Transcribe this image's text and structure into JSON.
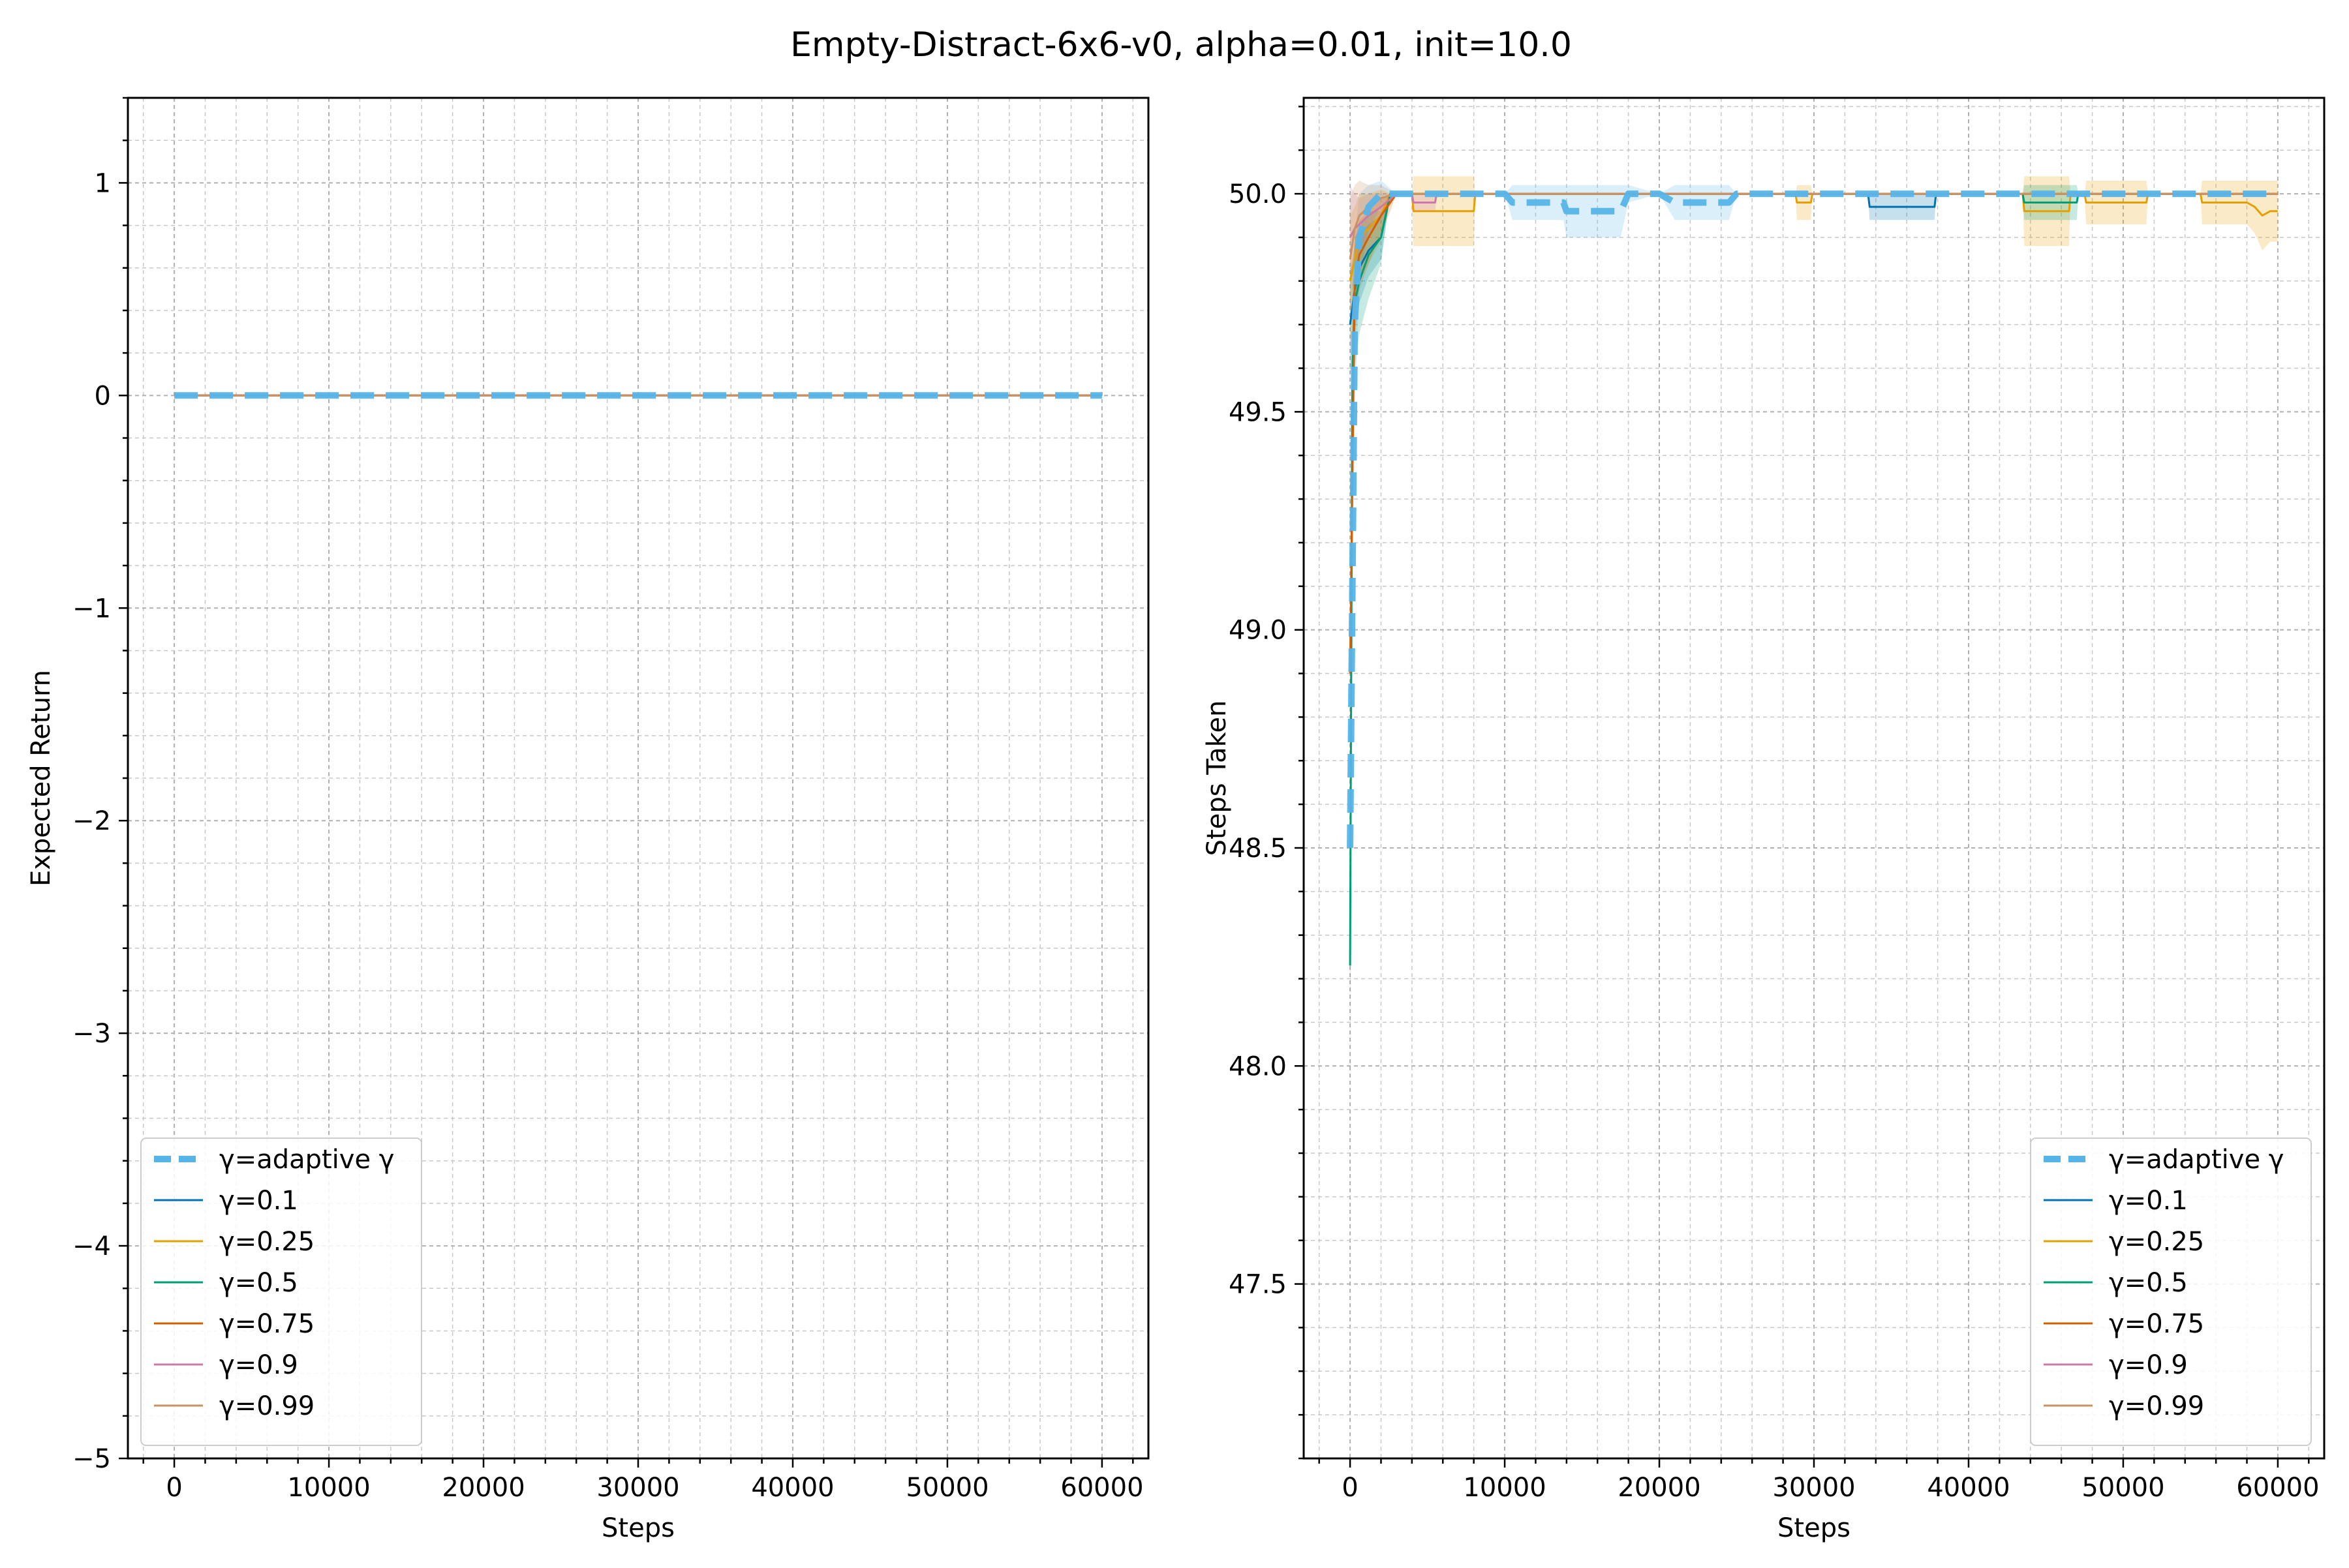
{
  "figure": {
    "title": "Empty-Distract-6x6-v0, alpha=0.01, init=10.0"
  },
  "chart_data": [
    {
      "type": "line",
      "xlabel": "Steps",
      "ylabel": "Expected Return",
      "xlim": [
        -3000,
        63000
      ],
      "ylim": [
        -5,
        1.4
      ],
      "xticks": [
        0,
        10000,
        20000,
        30000,
        40000,
        50000,
        60000
      ],
      "yticks": [
        -5,
        -4,
        -3,
        -2,
        -1,
        0,
        1
      ],
      "ytick_labels": [
        "−5",
        "−4",
        "−3",
        "−2",
        "−1",
        "0",
        "1"
      ],
      "grid": true,
      "legend_position": "lower-left",
      "series": [
        {
          "name": "γ=adaptive γ",
          "color": "#56b4e9",
          "style": "dashed",
          "x": [
            0,
            60000
          ],
          "y": [
            0,
            0
          ]
        },
        {
          "name": "γ=0.1",
          "color": "#0072b2",
          "style": "solid",
          "x": [
            0,
            60000
          ],
          "y": [
            0,
            0
          ]
        },
        {
          "name": "γ=0.25",
          "color": "#e69f00",
          "style": "solid",
          "x": [
            0,
            60000
          ],
          "y": [
            0,
            0
          ]
        },
        {
          "name": "γ=0.5",
          "color": "#009e73",
          "style": "solid",
          "x": [
            0,
            60000
          ],
          "y": [
            0,
            0
          ]
        },
        {
          "name": "γ=0.75",
          "color": "#d55e00",
          "style": "solid",
          "x": [
            0,
            60000
          ],
          "y": [
            0,
            0
          ]
        },
        {
          "name": "γ=0.9",
          "color": "#cc79a7",
          "style": "solid",
          "x": [
            0,
            60000
          ],
          "y": [
            0,
            0
          ]
        },
        {
          "name": "γ=0.99",
          "color": "#ca9161",
          "style": "solid",
          "x": [
            0,
            60000
          ],
          "y": [
            0,
            0
          ]
        }
      ]
    },
    {
      "type": "line",
      "xlabel": "Steps",
      "ylabel": "Steps Taken",
      "xlim": [
        -3000,
        63000
      ],
      "ylim": [
        47.1,
        50.22
      ],
      "xticks": [
        0,
        10000,
        20000,
        30000,
        40000,
        50000,
        60000
      ],
      "yticks": [
        47.5,
        48.0,
        48.5,
        49.0,
        49.5,
        50.0
      ],
      "ytick_labels": [
        "47.5",
        "48.0",
        "48.5",
        "49.0",
        "49.5",
        "50.0"
      ],
      "grid": true,
      "legend_position": "lower-right",
      "series": [
        {
          "name": "γ=adaptive γ",
          "color": "#56b4e9",
          "style": "dashed",
          "x": [
            0,
            300,
            600,
            1200,
            2000,
            3000,
            10000,
            10500,
            12000,
            13800,
            14000,
            17500,
            18000,
            20000,
            21000,
            23000,
            24500,
            25000,
            60000
          ],
          "y": [
            48.5,
            49.7,
            49.9,
            49.97,
            50.0,
            50.0,
            50.0,
            49.98,
            49.98,
            49.98,
            49.96,
            49.96,
            50.0,
            50.0,
            49.98,
            49.98,
            49.98,
            50.0,
            50.0
          ],
          "band": [
            0.25,
            0.2,
            0.1,
            0.05,
            0.03,
            0.0,
            0.0,
            0.04,
            0.04,
            0.04,
            0.06,
            0.06,
            0.02,
            0.0,
            0.04,
            0.04,
            0.04,
            0.0,
            0.0
          ]
        },
        {
          "name": "γ=0.1",
          "color": "#0072b2",
          "style": "solid",
          "x": [
            0,
            300,
            600,
            1200,
            2000,
            2600,
            3000,
            33500,
            33600,
            37800,
            37900,
            60000
          ],
          "y": [
            49.7,
            49.78,
            49.83,
            49.87,
            49.9,
            50.0,
            50.0,
            50.0,
            49.97,
            49.97,
            50.0,
            50.0
          ],
          "band": [
            0.12,
            0.1,
            0.08,
            0.06,
            0.05,
            0.0,
            0.0,
            0.0,
            0.03,
            0.03,
            0.0,
            0.0
          ]
        },
        {
          "name": "γ=0.25",
          "color": "#e69f00",
          "style": "solid",
          "x": [
            0,
            300,
            600,
            1200,
            2000,
            2600,
            4000,
            4100,
            8000,
            8100,
            28800,
            28900,
            29800,
            29900,
            43500,
            43600,
            46500,
            46600,
            47500,
            47600,
            51500,
            51600,
            55000,
            55100,
            58000,
            58500,
            59000,
            59500,
            60000
          ],
          "y": [
            49.8,
            49.85,
            49.9,
            49.92,
            49.95,
            50.0,
            50.0,
            49.96,
            49.96,
            50.0,
            50.0,
            49.98,
            49.98,
            50.0,
            50.0,
            49.96,
            49.96,
            50.0,
            50.0,
            49.98,
            49.98,
            50.0,
            50.0,
            49.98,
            49.98,
            49.97,
            49.95,
            49.96,
            49.96
          ],
          "band": [
            0.15,
            0.12,
            0.1,
            0.08,
            0.06,
            0.0,
            0.0,
            0.08,
            0.08,
            0.0,
            0.0,
            0.04,
            0.04,
            0.0,
            0.0,
            0.08,
            0.08,
            0.0,
            0.0,
            0.05,
            0.05,
            0.0,
            0.0,
            0.05,
            0.05,
            0.06,
            0.08,
            0.07,
            0.07
          ]
        },
        {
          "name": "γ=0.5",
          "color": "#009e73",
          "style": "solid",
          "x": [
            0,
            150,
            300,
            600,
            1200,
            2000,
            2600,
            3000,
            43500,
            43600,
            47000,
            47100,
            60000
          ],
          "y": [
            48.23,
            49.6,
            49.75,
            49.8,
            49.86,
            49.9,
            50.0,
            50.0,
            50.0,
            49.98,
            49.98,
            50.0,
            50.0
          ],
          "band": [
            0.3,
            0.2,
            0.15,
            0.12,
            0.1,
            0.06,
            0.0,
            0.0,
            0.0,
            0.04,
            0.04,
            0.0,
            0.0
          ]
        },
        {
          "name": "γ=0.75",
          "color": "#d55e00",
          "style": "solid",
          "x": [
            0,
            300,
            600,
            1200,
            2000,
            2600,
            3000,
            60000
          ],
          "y": [
            48.9,
            49.8,
            49.86,
            49.9,
            49.95,
            49.98,
            50.0,
            50.0
          ],
          "band": [
            0.2,
            0.1,
            0.08,
            0.06,
            0.04,
            0.02,
            0.0,
            0.0
          ]
        },
        {
          "name": "γ=0.9",
          "color": "#cc79a7",
          "style": "solid",
          "x": [
            0,
            300,
            600,
            1200,
            2000,
            3000,
            4000,
            4100,
            5500,
            5600,
            60000
          ],
          "y": [
            49.9,
            49.92,
            49.93,
            49.95,
            49.97,
            50.0,
            50.0,
            49.98,
            49.98,
            50.0,
            50.0
          ],
          "band": [
            0.12,
            0.08,
            0.06,
            0.05,
            0.03,
            0.0,
            0.0,
            0.02,
            0.02,
            0.0,
            0.0
          ]
        },
        {
          "name": "γ=0.99",
          "color": "#ca9161",
          "style": "solid",
          "x": [
            0,
            300,
            600,
            1200,
            2000,
            3000,
            60000
          ],
          "y": [
            49.85,
            49.92,
            49.95,
            49.97,
            49.99,
            50.0,
            50.0
          ],
          "band": [
            0.14,
            0.1,
            0.08,
            0.05,
            0.03,
            0.0,
            0.0
          ]
        }
      ]
    }
  ]
}
